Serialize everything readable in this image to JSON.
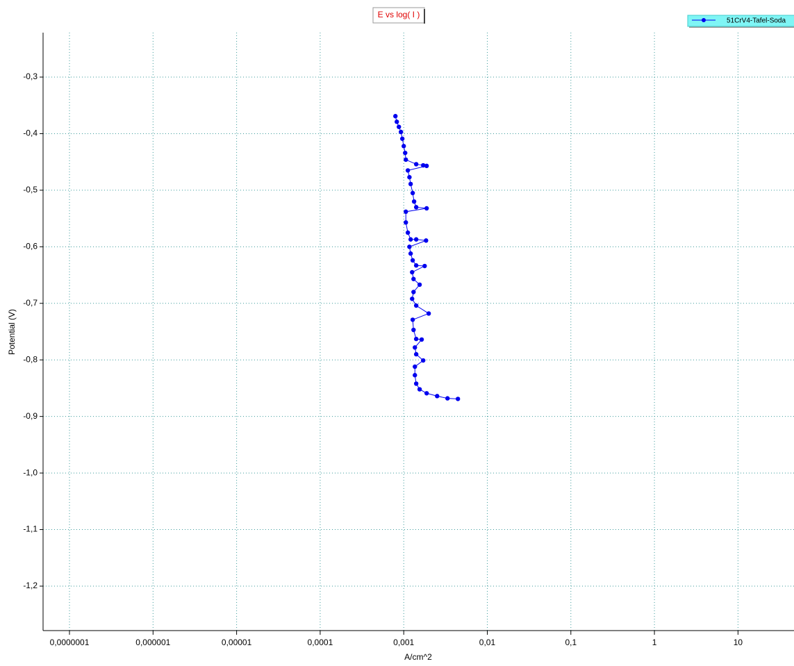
{
  "chart_data": {
    "type": "line",
    "title": "E vs log( I )",
    "xlabel": "A/cm^2",
    "ylabel": "Potential (V)",
    "xscale": "log",
    "grid": true,
    "legend": "top-right",
    "x": [
      0.000795,
      0.000826,
      0.000875,
      0.000926,
      0.000962,
      0.001,
      0.00104,
      0.00106,
      0.00141,
      0.00171,
      0.00188,
      0.00112,
      0.00117,
      0.00121,
      0.00128,
      0.00133,
      0.00141,
      0.00188,
      0.00106,
      0.00106,
      0.00112,
      0.00121,
      0.00141,
      0.00185,
      0.00117,
      0.00121,
      0.00128,
      0.00141,
      0.00178,
      0.00126,
      0.00131,
      0.00155,
      0.00131,
      0.00126,
      0.00141,
      0.00199,
      0.00128,
      0.00131,
      0.00141,
      0.00164,
      0.00136,
      0.00141,
      0.00171,
      0.00136,
      0.00136,
      0.00141,
      0.00155,
      0.00188,
      0.00251,
      0.00334,
      0.00445
    ],
    "series": [
      {
        "name": "51CrV4-Tafel-Soda",
        "color": "#0000ee",
        "values": [
          -0.369,
          -0.379,
          -0.388,
          -0.397,
          -0.409,
          -0.422,
          -0.434,
          -0.446,
          -0.454,
          -0.456,
          -0.457,
          -0.465,
          -0.477,
          -0.489,
          -0.505,
          -0.52,
          -0.53,
          -0.532,
          -0.538,
          -0.557,
          -0.575,
          -0.587,
          -0.587,
          -0.589,
          -0.6,
          -0.612,
          -0.624,
          -0.633,
          -0.634,
          -0.645,
          -0.657,
          -0.667,
          -0.68,
          -0.692,
          -0.704,
          -0.718,
          -0.729,
          -0.747,
          -0.763,
          -0.764,
          -0.778,
          -0.79,
          -0.801,
          -0.812,
          -0.827,
          -0.842,
          -0.852,
          -0.859,
          -0.864,
          -0.868,
          -0.869
        ]
      }
    ],
    "xlim": [
      4.83e-08,
      46.8
    ],
    "xticks": [
      {
        "value": 1e-07,
        "label": "0,0000001"
      },
      {
        "value": 1e-06,
        "label": "0,000001"
      },
      {
        "value": 1e-05,
        "label": "0,00001"
      },
      {
        "value": 0.0001,
        "label": "0,0001"
      },
      {
        "value": 0.001,
        "label": "0,001"
      },
      {
        "value": 0.01,
        "label": "0,01"
      },
      {
        "value": 0.1,
        "label": "0,1"
      },
      1,
      10
    ],
    "ylim": [
      -1.2786,
      -0.2214
    ],
    "yticks": [
      {
        "value": -0.3,
        "label": "-0,3"
      },
      {
        "value": -0.4,
        "label": "-0,4"
      },
      {
        "value": -0.5,
        "label": "-0,5"
      },
      {
        "value": -0.6,
        "label": "-0,6"
      },
      {
        "value": -0.7,
        "label": "-0,7"
      },
      {
        "value": -0.8,
        "label": "-0,8"
      },
      {
        "value": -0.9,
        "label": "-0,9"
      },
      {
        "value": -1.0,
        "label": "-1,0"
      },
      {
        "value": -1.1,
        "label": "-1,1"
      },
      {
        "value": -1.2,
        "label": "-1,2"
      }
    ]
  }
}
